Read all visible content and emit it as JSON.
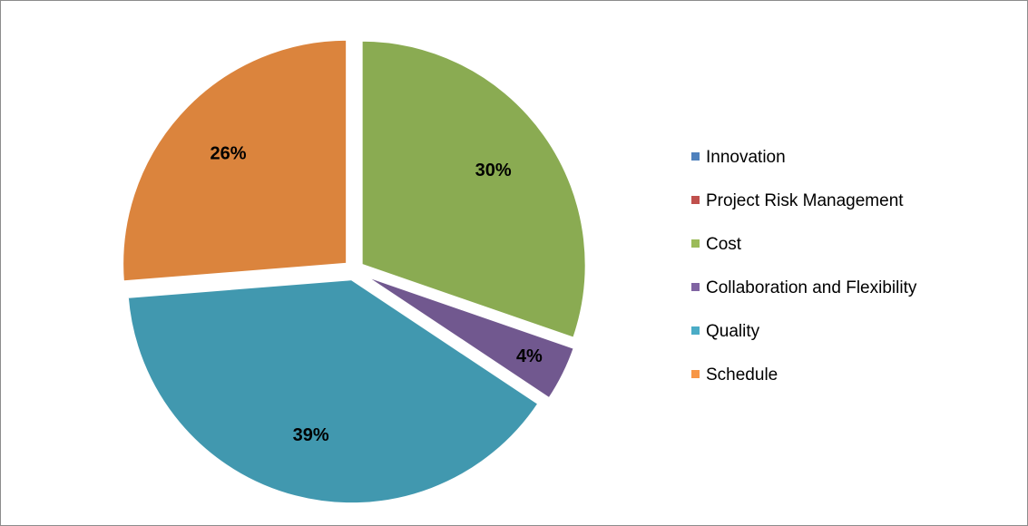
{
  "chart_data": {
    "type": "pie",
    "categories": [
      "Innovation",
      "Project Risk Management",
      "Cost",
      "Collaboration and Flexibility",
      "Quality",
      "Schedule"
    ],
    "values": [
      0,
      0,
      30,
      4,
      39,
      26
    ],
    "value_labels": [
      null,
      null,
      "30%",
      "4%",
      "39%",
      "26%"
    ],
    "colors": [
      "#4f81bd",
      "#c0504d",
      "#9bbb59",
      "#8064a2",
      "#4bacc6",
      "#f79646"
    ],
    "slice_colors": [
      "#4a7ebb",
      "#be4b48",
      "#8aab52",
      "#71588f",
      "#4198af",
      "#db843d"
    ],
    "legend": "right"
  }
}
